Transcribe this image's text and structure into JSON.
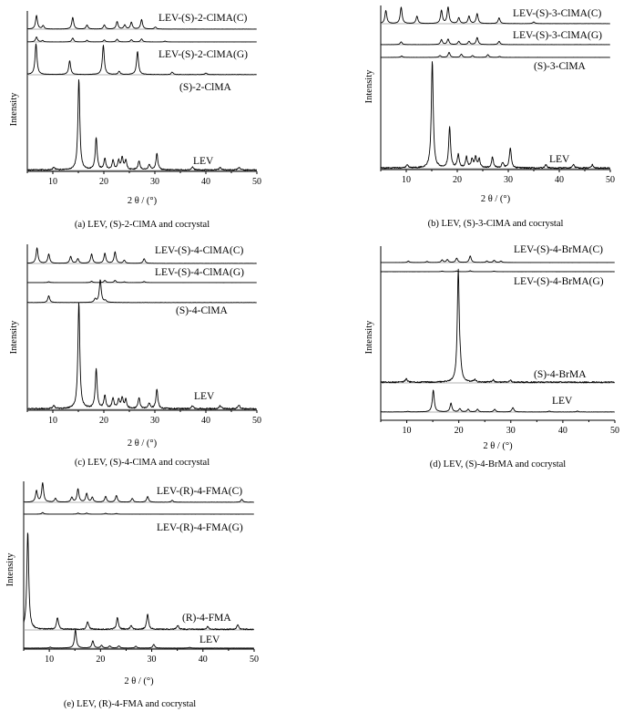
{
  "panels": [
    {
      "caption": "(a) LEV, (S)-2-ClMA and cocrystal",
      "ylabel": "Intensity",
      "xlabel": "2 θ / (°)",
      "xticks": [
        "10",
        "20",
        "30",
        "40",
        "50"
      ],
      "xlim": [
        5,
        50
      ],
      "patterns": [
        {
          "name": "LEV-(S)-2-ClMA(C)",
          "peaks": [
            [
              6.8,
              1.0
            ],
            [
              8.1,
              0.25
            ],
            [
              13.9,
              0.85
            ],
            [
              16.7,
              0.3
            ],
            [
              20.1,
              0.3
            ],
            [
              22.6,
              0.55
            ],
            [
              24.1,
              0.3
            ],
            [
              25.4,
              0.5
            ],
            [
              27.4,
              0.7
            ],
            [
              30.1,
              0.15
            ]
          ]
        },
        {
          "name": "",
          "peaks": [
            [
              6.8,
              0.9
            ],
            [
              8.0,
              0.25
            ],
            [
              13.9,
              0.7
            ],
            [
              16.7,
              0.3
            ],
            [
              20.1,
              0.35
            ],
            [
              22.6,
              0.5
            ],
            [
              25.4,
              0.4
            ],
            [
              27.4,
              0.55
            ],
            [
              32.0,
              0.15
            ]
          ]
        },
        {
          "name": "LEV-(S)-2-ClMA(G)",
          "peaks": []
        },
        {
          "name": "(S)-2-ClMA",
          "peaks": [
            [
              6.7,
              1.0
            ],
            [
              13.3,
              0.45
            ],
            [
              19.9,
              0.95
            ],
            [
              23.0,
              0.1
            ],
            [
              26.6,
              0.75
            ],
            [
              33.4,
              0.08
            ],
            [
              40.0,
              0.05
            ]
          ]
        },
        {
          "name": "LEV",
          "peaks": [
            [
              10.2,
              0.03
            ],
            [
              15.1,
              1.0
            ],
            [
              18.5,
              0.35
            ],
            [
              20.2,
              0.12
            ],
            [
              21.8,
              0.1
            ],
            [
              22.9,
              0.1
            ],
            [
              23.6,
              0.13
            ],
            [
              24.3,
              0.1
            ],
            [
              26.9,
              0.1
            ],
            [
              28.9,
              0.06
            ],
            [
              30.4,
              0.18
            ],
            [
              37.4,
              0.03
            ],
            [
              42.8,
              0.03
            ],
            [
              46.5,
              0.03
            ]
          ]
        }
      ]
    },
    {
      "caption": "(b) LEV, (S)-3-ClMA and cocrystal",
      "ylabel": "Intensity",
      "xlabel": "2 θ / (°)",
      "xticks": [
        "10",
        "20",
        "30",
        "40",
        "50"
      ],
      "xlim": [
        5,
        50
      ],
      "patterns": [
        {
          "name": "LEV-(S)-3-ClMA(C)",
          "peaks": [
            [
              6.0,
              0.8
            ],
            [
              9.0,
              1.0
            ],
            [
              12.1,
              0.45
            ],
            [
              16.9,
              0.8
            ],
            [
              18.2,
              1.0
            ],
            [
              20.3,
              0.35
            ],
            [
              22.3,
              0.45
            ],
            [
              23.9,
              0.6
            ],
            [
              28.2,
              0.35
            ],
            [
              35.0,
              0.1
            ]
          ]
        },
        {
          "name": "LEV-(S)-3-ClMA(G)",
          "peaks": [
            [
              9.0,
              0.25
            ],
            [
              16.9,
              0.45
            ],
            [
              18.2,
              0.5
            ],
            [
              20.3,
              0.3
            ],
            [
              22.3,
              0.3
            ],
            [
              23.9,
              0.65
            ],
            [
              28.2,
              0.3
            ]
          ]
        },
        {
          "name": "(S)-3-ClMA",
          "peaks": [
            [
              9.1,
              0.15
            ],
            [
              16.6,
              0.2
            ],
            [
              18.4,
              0.55
            ],
            [
              20.8,
              0.35
            ],
            [
              23.0,
              0.2
            ],
            [
              26.0,
              0.3
            ],
            [
              28.3,
              0.1
            ]
          ]
        },
        {
          "name": "LEV",
          "peaks": [
            [
              10.2,
              0.03
            ],
            [
              15.1,
              1.0
            ],
            [
              18.5,
              0.38
            ],
            [
              20.2,
              0.12
            ],
            [
              21.8,
              0.1
            ],
            [
              22.9,
              0.08
            ],
            [
              23.6,
              0.1
            ],
            [
              24.3,
              0.08
            ],
            [
              26.9,
              0.1
            ],
            [
              28.9,
              0.05
            ],
            [
              30.4,
              0.19
            ],
            [
              37.4,
              0.03
            ],
            [
              42.8,
              0.03
            ],
            [
              46.5,
              0.03
            ]
          ]
        }
      ]
    },
    {
      "caption": "(c) LEV, (S)-4-ClMA and cocrystal",
      "ylabel": "Intensity",
      "xlabel": "2 θ / (°)",
      "xticks": [
        "10",
        "20",
        "30",
        "40",
        "50"
      ],
      "xlim": [
        5,
        50
      ],
      "patterns": [
        {
          "name": "LEV-(S)-4-ClMA(C)",
          "peaks": [
            [
              6.9,
              1.0
            ],
            [
              9.2,
              0.6
            ],
            [
              13.5,
              0.45
            ],
            [
              14.9,
              0.3
            ],
            [
              17.6,
              0.6
            ],
            [
              20.2,
              0.65
            ],
            [
              22.2,
              0.75
            ],
            [
              24.0,
              0.2
            ],
            [
              27.9,
              0.3
            ]
          ]
        },
        {
          "name": "LEV-(S)-4-ClMA(G)",
          "peaks": [
            [
              9.2,
              0.12
            ],
            [
              17.6,
              0.18
            ],
            [
              20.2,
              0.3
            ],
            [
              22.2,
              0.3
            ],
            [
              24.0,
              0.1
            ],
            [
              27.9,
              0.15
            ]
          ]
        },
        {
          "name": "(S)-4-ClMA",
          "peaks": [
            [
              9.2,
              0.3
            ],
            [
              18.3,
              0.15
            ],
            [
              19.3,
              1.0
            ],
            [
              20.3,
              0.08
            ]
          ]
        },
        {
          "name": "LEV",
          "peaks": [
            [
              10.2,
              0.03
            ],
            [
              15.1,
              1.0
            ],
            [
              18.5,
              0.37
            ],
            [
              20.2,
              0.12
            ],
            [
              21.8,
              0.1
            ],
            [
              22.9,
              0.08
            ],
            [
              23.6,
              0.1
            ],
            [
              24.3,
              0.08
            ],
            [
              26.9,
              0.1
            ],
            [
              28.9,
              0.05
            ],
            [
              30.4,
              0.18
            ],
            [
              37.4,
              0.03
            ],
            [
              42.8,
              0.03
            ],
            [
              46.5,
              0.03
            ]
          ]
        }
      ]
    },
    {
      "caption": "(d) LEV, (S)-4-BrMA and cocrystal",
      "ylabel": "Intensity",
      "xlabel": "2 θ / (°)",
      "xticks": [
        "10",
        "20",
        "30",
        "40",
        "50"
      ],
      "xlim": [
        5,
        50
      ],
      "patterns": [
        {
          "name": "LEV-(S)-4-BrMA(C)",
          "peaks": [
            [
              10.3,
              0.2
            ],
            [
              13.9,
              0.15
            ],
            [
              16.8,
              0.35
            ],
            [
              17.8,
              0.4
            ],
            [
              19.6,
              0.6
            ],
            [
              22.2,
              0.9
            ],
            [
              25.4,
              0.2
            ],
            [
              26.8,
              0.3
            ],
            [
              28.1,
              0.2
            ]
          ]
        },
        {
          "name": "LEV-(S)-4-BrMA(G)",
          "peaks": [
            [
              16.8,
              0.15
            ],
            [
              19.6,
              0.2
            ],
            [
              22.2,
              0.25
            ],
            [
              26.8,
              0.15
            ]
          ]
        },
        {
          "name": "(S)-4-BrMA",
          "peaks": [
            [
              9.9,
              0.03
            ],
            [
              19.9,
              1.0
            ],
            [
              20.3,
              0.08
            ],
            [
              23.1,
              0.02
            ],
            [
              26.6,
              0.02
            ],
            [
              29.9,
              0.02
            ]
          ]
        },
        {
          "name": "LEV",
          "peaks": [
            [
              10.2,
              0.03
            ],
            [
              15.1,
              1.0
            ],
            [
              18.5,
              0.4
            ],
            [
              20.2,
              0.15
            ],
            [
              21.8,
              0.12
            ],
            [
              23.6,
              0.12
            ],
            [
              26.9,
              0.12
            ],
            [
              30.4,
              0.2
            ],
            [
              37.4,
              0.04
            ],
            [
              42.8,
              0.04
            ]
          ]
        }
      ]
    },
    {
      "caption": "(e) LEV, (R)-4-FMA and cocrystal",
      "ylabel": "Intensity",
      "xlabel": "2 θ / (°)",
      "xticks": [
        "10",
        "20",
        "30",
        "40",
        "50"
      ],
      "xlim": [
        5,
        50
      ],
      "patterns": [
        {
          "name": "LEV-(R)-4-FMA(C)",
          "peaks": [
            [
              7.5,
              0.6
            ],
            [
              8.7,
              1.0
            ],
            [
              11.2,
              0.2
            ],
            [
              14.4,
              0.25
            ],
            [
              15.6,
              0.7
            ],
            [
              17.3,
              0.45
            ],
            [
              18.4,
              0.25
            ],
            [
              21.0,
              0.3
            ],
            [
              23.1,
              0.35
            ],
            [
              26.2,
              0.2
            ],
            [
              29.2,
              0.3
            ],
            [
              34.0,
              0.1
            ],
            [
              47.6,
              0.15
            ]
          ]
        },
        {
          "name": "LEV-(R)-4-FMA(G)",
          "peaks": [
            [
              8.7,
              0.3
            ],
            [
              15.6,
              0.2
            ],
            [
              17.3,
              0.2
            ],
            [
              21.0,
              0.15
            ],
            [
              23.1,
              0.12
            ]
          ]
        },
        {
          "name": "(R)-4-FMA",
          "peaks": [
            [
              5.8,
              1.0
            ],
            [
              11.6,
              0.12
            ],
            [
              17.5,
              0.08
            ],
            [
              23.3,
              0.12
            ],
            [
              26.0,
              0.04
            ],
            [
              29.2,
              0.16
            ],
            [
              35.1,
              0.04
            ],
            [
              40.9,
              0.03
            ],
            [
              46.8,
              0.05
            ]
          ]
        },
        {
          "name": "LEV",
          "peaks": [
            [
              10.2,
              0.05
            ],
            [
              15.1,
              1.0
            ],
            [
              18.5,
              0.4
            ],
            [
              20.2,
              0.15
            ],
            [
              21.8,
              0.12
            ],
            [
              23.6,
              0.12
            ],
            [
              26.9,
              0.1
            ],
            [
              30.4,
              0.2
            ],
            [
              37.4,
              0.04
            ]
          ]
        }
      ]
    }
  ]
}
